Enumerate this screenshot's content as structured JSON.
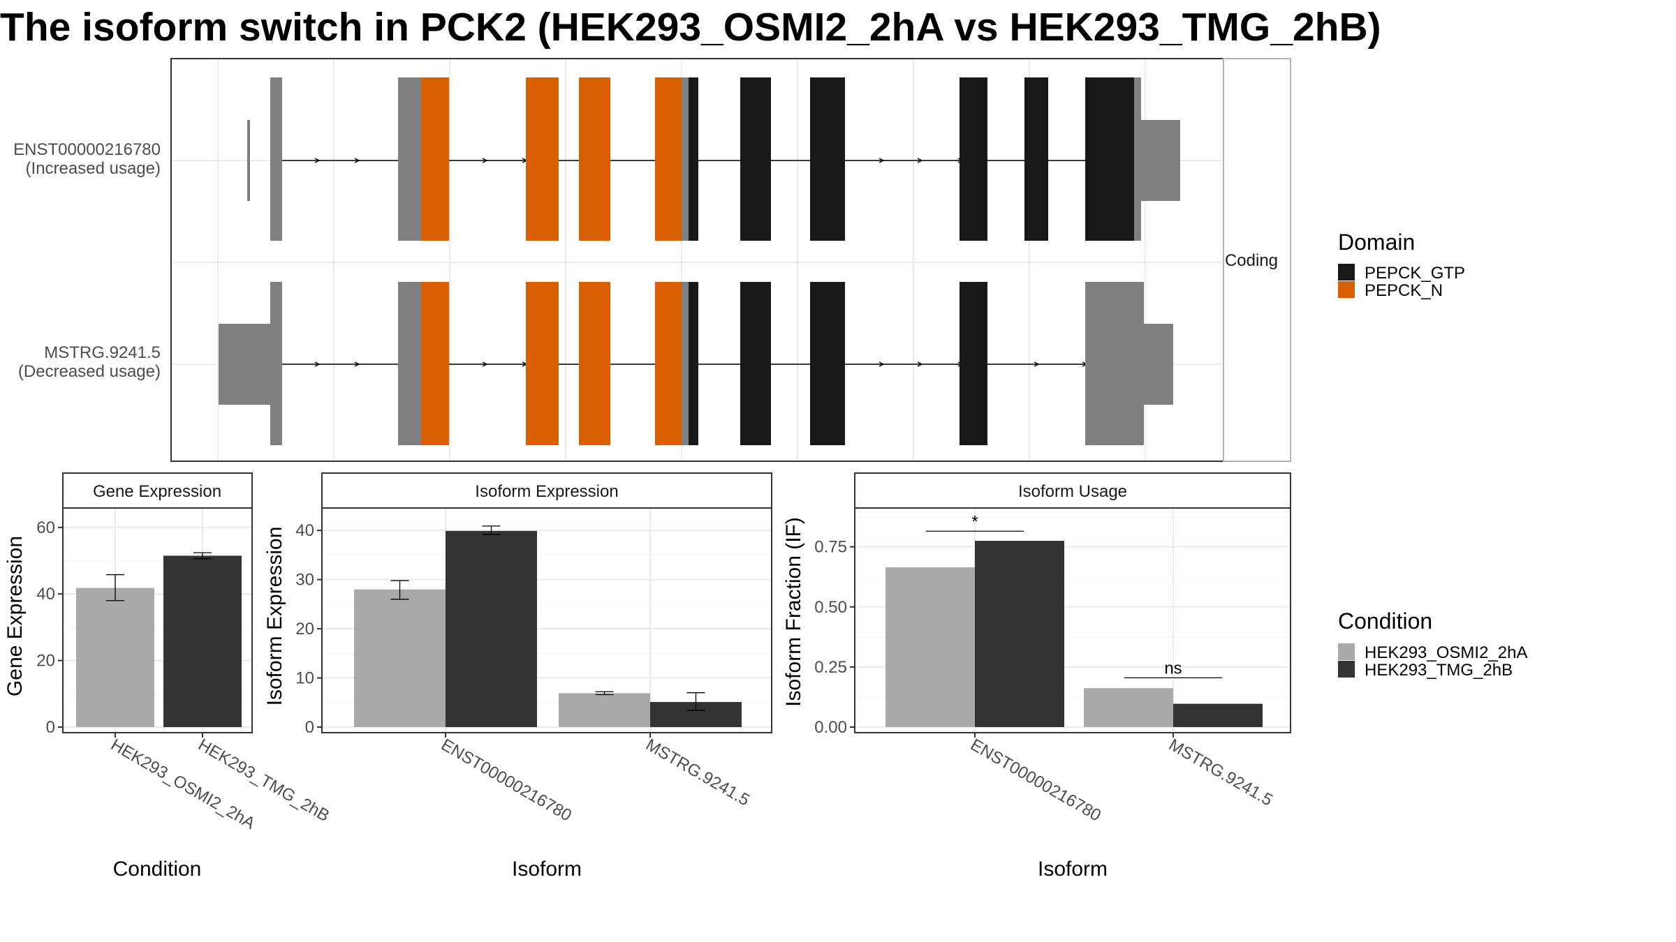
{
  "title": "The isoform switch in PCK2 (HEK293_OSMI2_2hA vs HEK293_TMG_2hB)",
  "colors": {
    "osmi": "#a9a9a9",
    "tmg": "#333333",
    "pepck_gtp": "#181818",
    "pepck_n": "#d95f02",
    "utr": "#808080",
    "grid": "#ebebeb",
    "frame": "#333333"
  },
  "transcripts": {
    "strip_label": "Coding",
    "rows": [
      {
        "label_id": "ENST00000216780",
        "label_usage": "(Increased usage)"
      },
      {
        "label_id": "MSTRG.9241.5",
        "label_usage": "(Decreased usage)"
      }
    ]
  },
  "legends": {
    "domain": {
      "title": "Domain",
      "items": [
        {
          "name": "PEPCK_GTP",
          "color": "#181818"
        },
        {
          "name": "PEPCK_N",
          "color": "#d95f02"
        }
      ]
    },
    "condition": {
      "title": "Condition",
      "items": [
        {
          "name": "HEK293_OSMI2_2hA",
          "color": "#a9a9a9"
        },
        {
          "name": "HEK293_TMG_2hB",
          "color": "#333333"
        }
      ]
    }
  },
  "chart_data": [
    {
      "type": "bar",
      "strip": "Gene Expression",
      "xlabel": "Condition",
      "ylabel": "Gene Expression",
      "ylim": [
        0,
        65
      ],
      "yticks": [
        0,
        20,
        40,
        60
      ],
      "categories": [
        "HEK293_OSMI2_2hA",
        "HEK293_TMG_2hB"
      ],
      "series": [
        {
          "name": "HEK293_OSMI2_2hA",
          "values": [
            41.8,
            null
          ],
          "err_low": [
            38.0,
            null
          ],
          "err_high": [
            45.8,
            null
          ]
        },
        {
          "name": "HEK293_TMG_2hB",
          "values": [
            null,
            51.5
          ],
          "err_low": [
            null,
            50.6
          ],
          "err_high": [
            null,
            52.4
          ]
        }
      ]
    },
    {
      "type": "bar",
      "strip": "Isoform Expression",
      "xlabel": "Isoform",
      "ylabel": "Isoform Expression",
      "ylim": [
        0,
        44
      ],
      "yticks": [
        0,
        10,
        20,
        30,
        40
      ],
      "categories": [
        "ENST00000216780",
        "MSTRG.9241.5"
      ],
      "series": [
        {
          "name": "HEK293_OSMI2_2hA",
          "values": [
            28.0,
            6.9
          ],
          "err_low": [
            26.0,
            6.6
          ],
          "err_high": [
            29.8,
            7.2
          ]
        },
        {
          "name": "HEK293_TMG_2hB",
          "values": [
            39.9,
            5.1
          ],
          "err_low": [
            39.2,
            3.4
          ],
          "err_high": [
            40.9,
            7.0
          ]
        }
      ]
    },
    {
      "type": "bar",
      "strip": "Isoform Usage",
      "xlabel": "Isoform",
      "ylabel": "Isoform Fraction (IF)",
      "ylim": [
        0,
        0.9
      ],
      "yticks": [
        "0.00",
        "0.25",
        "0.50",
        "0.75"
      ],
      "categories": [
        "ENST00000216780",
        "MSTRG.9241.5"
      ],
      "series": [
        {
          "name": "HEK293_OSMI2_2hA",
          "values": [
            0.665,
            0.162
          ]
        },
        {
          "name": "HEK293_TMG_2hB",
          "values": [
            0.775,
            0.097
          ]
        }
      ],
      "significance": [
        {
          "category": "ENST00000216780",
          "label": "*",
          "y": 0.815
        },
        {
          "category": "MSTRG.9241.5",
          "label": "ns",
          "y": 0.205
        }
      ]
    }
  ]
}
